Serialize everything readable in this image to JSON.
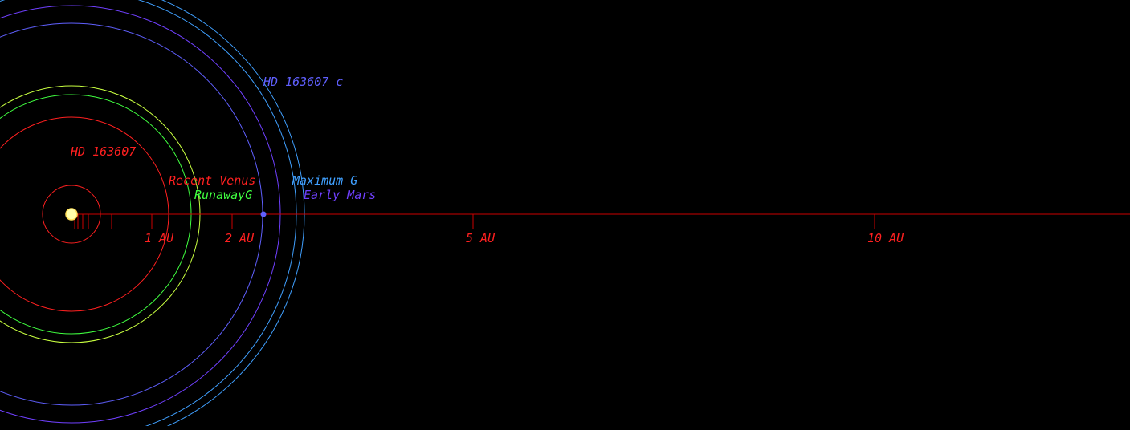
{
  "star": {
    "name": "HD 163607",
    "color": "#ffffaa"
  },
  "scale": {
    "unit": "AU",
    "tick_labels": [
      "1 AU",
      "2 AU",
      "5 AU",
      "10 AU"
    ],
    "axis_color": "#cc0000"
  },
  "zones": [
    {
      "name": "Recent Venus",
      "radius_au": 1.21,
      "color": "#ff2020"
    },
    {
      "name": "RunawayG",
      "radius_au": 1.49,
      "color": "#40ff40"
    },
    {
      "name": "Maximum G",
      "radius_au": 2.8,
      "color": "#40a0ff"
    },
    {
      "name": "Early Mars",
      "radius_au": 2.6,
      "color": "#7040ff"
    }
  ],
  "planets": [
    {
      "name": "HD 163607",
      "semi_major_au": 0.36,
      "color": "#ff2020"
    },
    {
      "name": "HD 163607 c",
      "semi_major_au": 2.38,
      "color": "#6060ff"
    }
  ]
}
